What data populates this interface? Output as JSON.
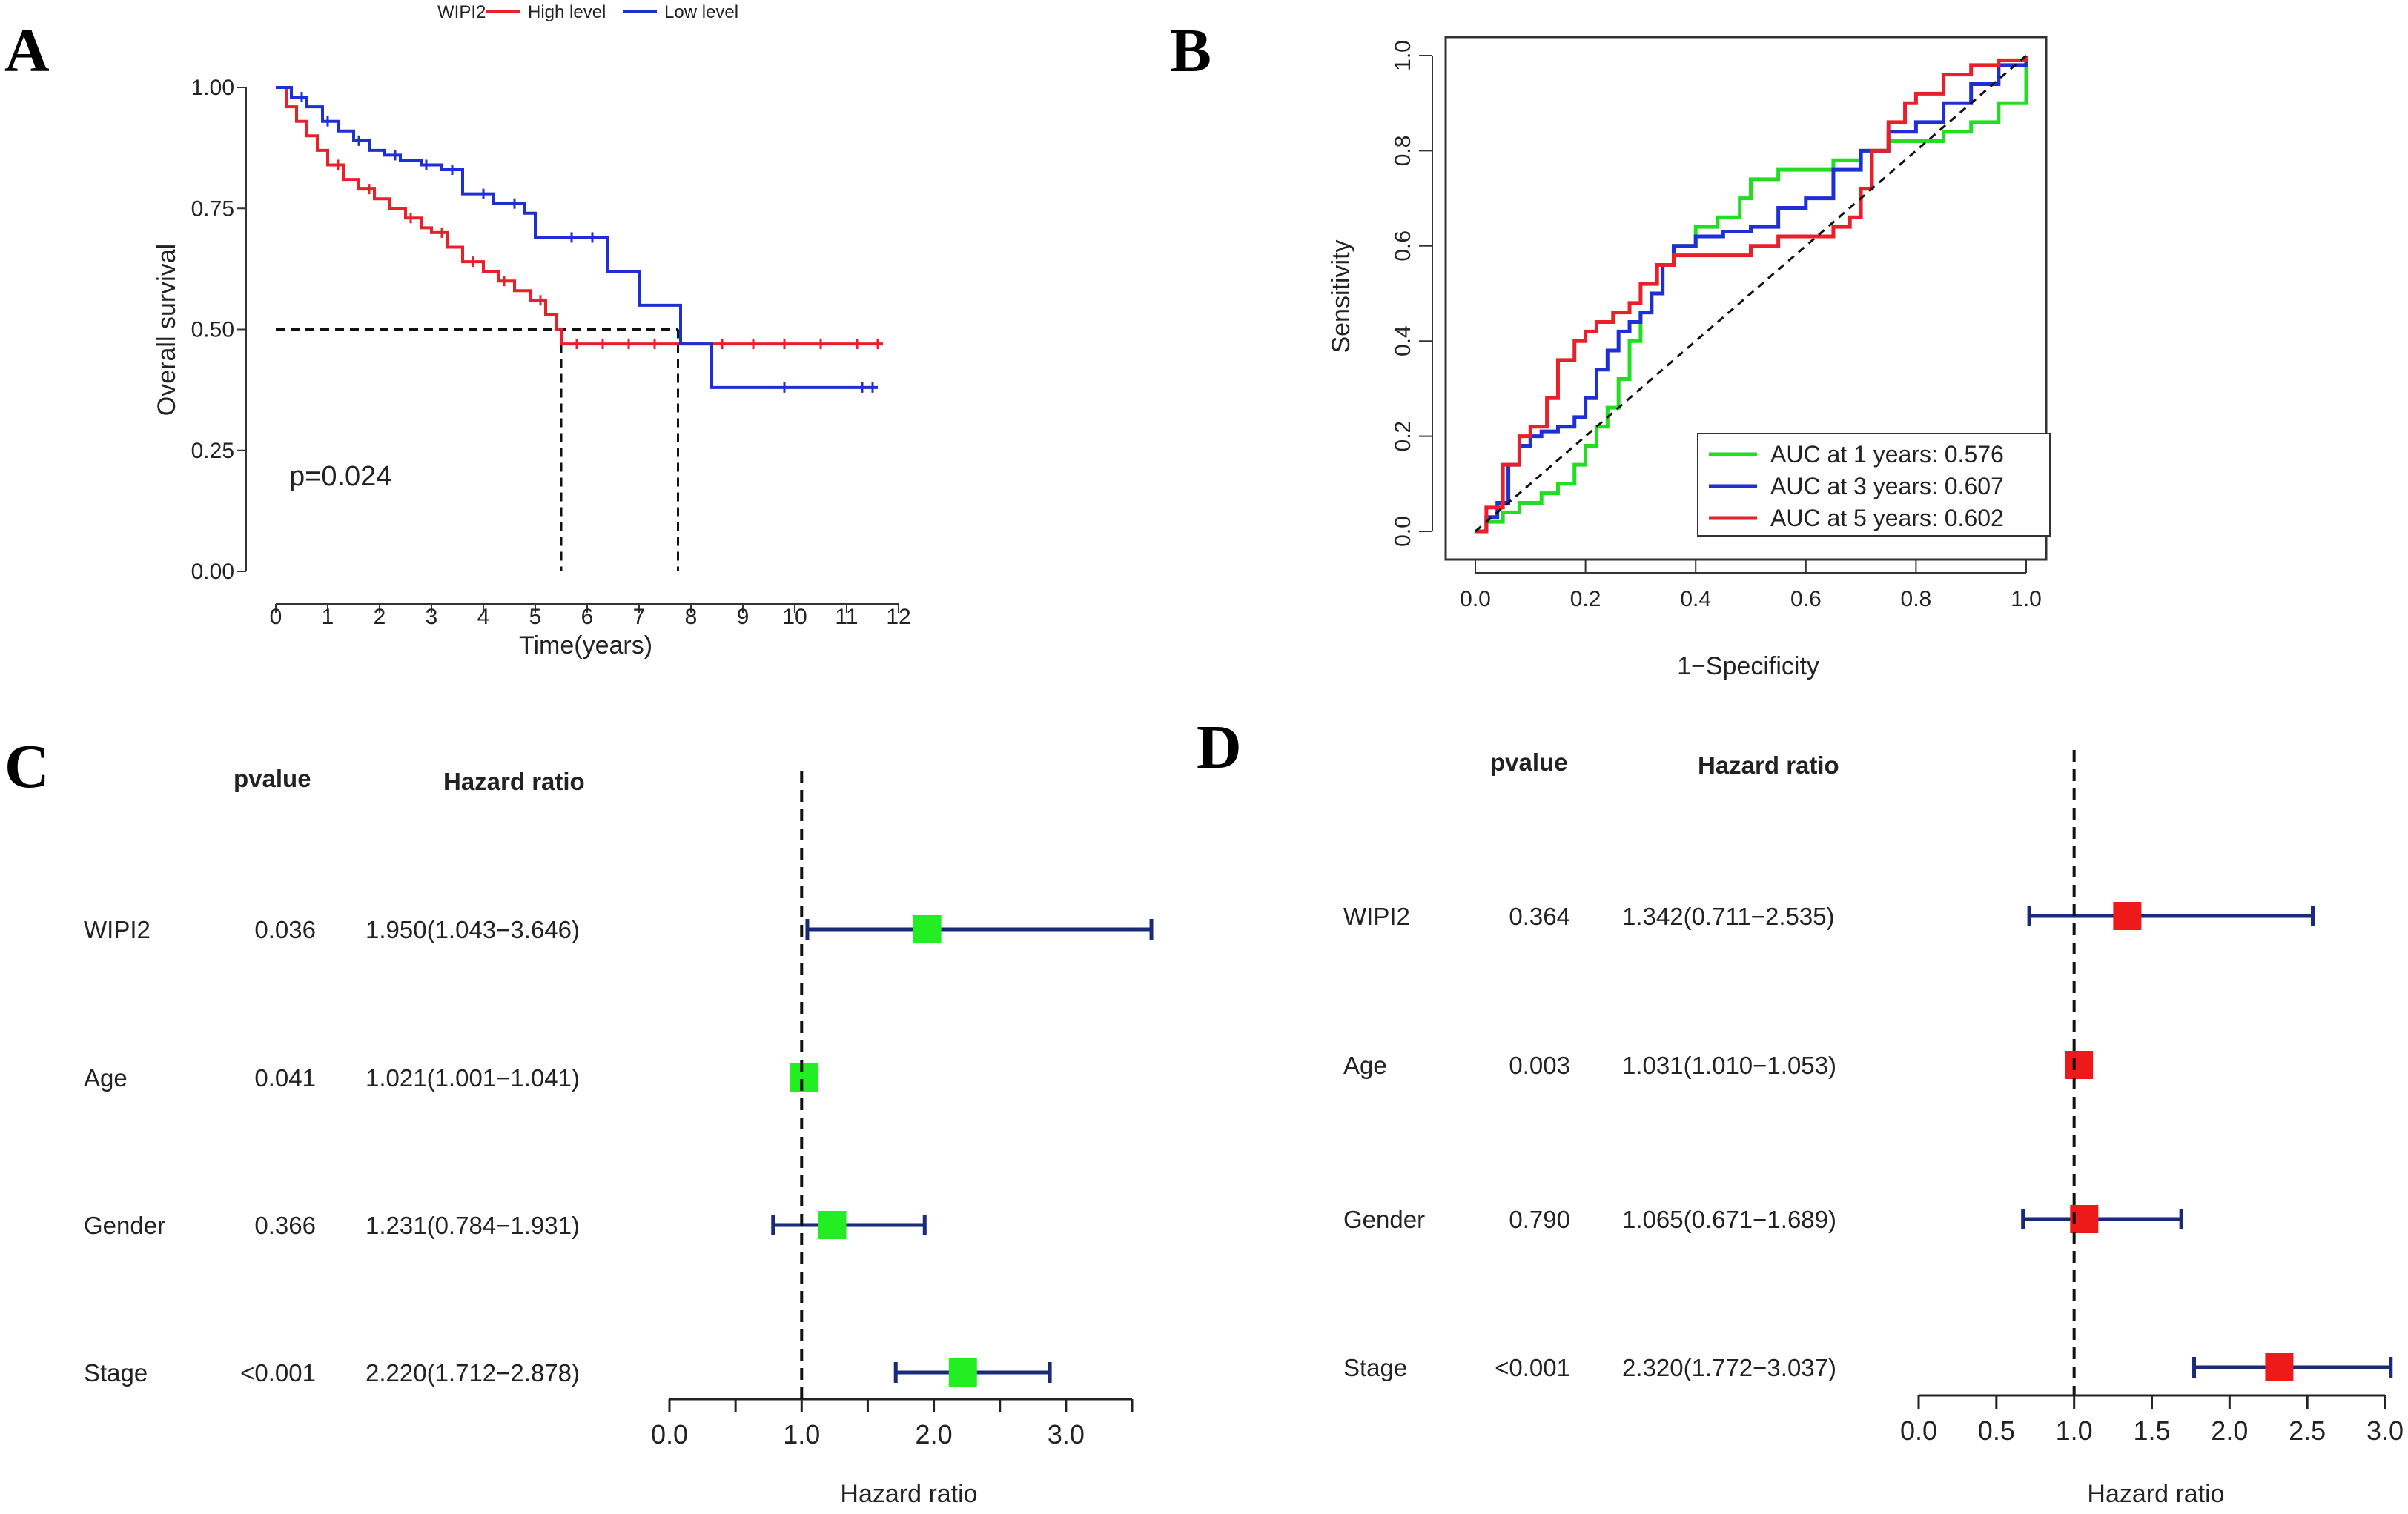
{
  "panels": {
    "a": "A",
    "b": "B",
    "c": "C",
    "d": "D"
  },
  "colors": {
    "high": "#e8202a",
    "low": "#1f2fd6",
    "auc1": "#22dd22",
    "auc3": "#1f2fd6",
    "auc5": "#e8202a",
    "fp_c_box": "#22ee22",
    "fp_d_box": "#ee1a1a",
    "fp_line": "#1a2a7a"
  },
  "chart_data": [
    {
      "id": "km",
      "type": "line",
      "title": "",
      "legend_title": "WIPI2",
      "xlabel": "Time(years)",
      "ylabel": "Overall survival",
      "xlim": [
        0,
        12
      ],
      "ylim": [
        0,
        1
      ],
      "x_ticks": [
        "0",
        "1",
        "2",
        "3",
        "4",
        "5",
        "6",
        "7",
        "8",
        "9",
        "10",
        "11",
        "12"
      ],
      "y_ticks": [
        "0.00",
        "0.25",
        "0.50",
        "0.75",
        "1.00"
      ],
      "annotation": "p=0.024",
      "median_reference": {
        "y": 0.5,
        "high_median_x": 5.5,
        "low_median_x": 7.75
      },
      "series": [
        {
          "name": "High level",
          "color_key": "high",
          "x": [
            0,
            0.2,
            0.4,
            0.6,
            0.8,
            1.0,
            1.3,
            1.6,
            1.9,
            2.2,
            2.5,
            2.8,
            3.0,
            3.3,
            3.6,
            4.0,
            4.3,
            4.6,
            4.9,
            5.2,
            5.4,
            5.5,
            6.0,
            7.0,
            7.8,
            8.0,
            9.0,
            10.0,
            11.0,
            11.7
          ],
          "y": [
            1.0,
            0.96,
            0.93,
            0.9,
            0.87,
            0.84,
            0.81,
            0.79,
            0.77,
            0.75,
            0.73,
            0.71,
            0.7,
            0.67,
            0.64,
            0.62,
            0.6,
            0.58,
            0.56,
            0.53,
            0.5,
            0.47,
            0.47,
            0.47,
            0.47,
            0.47,
            0.47,
            0.47,
            0.47,
            0.47
          ],
          "censor_x": [
            1.2,
            1.8,
            2.6,
            3.2,
            3.8,
            4.4,
            5.1,
            5.8,
            6.3,
            6.8,
            7.3,
            8.6,
            9.2,
            9.8,
            10.5,
            11.2,
            11.6
          ]
        },
        {
          "name": "Low level",
          "color_key": "low",
          "x": [
            0,
            0.3,
            0.6,
            0.9,
            1.2,
            1.5,
            1.8,
            2.1,
            2.4,
            2.8,
            3.2,
            3.6,
            4.2,
            4.8,
            5.0,
            5.5,
            5.8,
            6.4,
            6.8,
            7.0,
            7.7,
            7.8,
            8.3,
            8.4,
            9.0,
            10.0,
            11.0,
            11.6
          ],
          "y": [
            1.0,
            0.98,
            0.96,
            0.93,
            0.91,
            0.89,
            0.87,
            0.86,
            0.85,
            0.84,
            0.83,
            0.78,
            0.76,
            0.74,
            0.69,
            0.69,
            0.69,
            0.62,
            0.62,
            0.55,
            0.55,
            0.47,
            0.47,
            0.38,
            0.38,
            0.38,
            0.38,
            0.38
          ],
          "censor_x": [
            0.5,
            1.0,
            1.6,
            2.3,
            2.9,
            3.4,
            4.0,
            4.6,
            5.7,
            6.1,
            9.8,
            11.3,
            11.5
          ]
        }
      ]
    },
    {
      "id": "roc",
      "type": "line",
      "title": "",
      "xlabel": "1−Specificity",
      "ylabel": "Sensitivity",
      "xlim": [
        0,
        1
      ],
      "ylim": [
        0,
        1
      ],
      "x_ticks": [
        "0.0",
        "0.2",
        "0.4",
        "0.6",
        "0.8",
        "1.0"
      ],
      "y_ticks": [
        "0.0",
        "0.2",
        "0.4",
        "0.6",
        "0.8",
        "1.0"
      ],
      "series": [
        {
          "name": "AUC at 1 years: 0.576",
          "color_key": "auc1",
          "x": [
            0,
            0.02,
            0.05,
            0.08,
            0.12,
            0.15,
            0.18,
            0.2,
            0.22,
            0.24,
            0.26,
            0.28,
            0.3,
            0.32,
            0.34,
            0.36,
            0.4,
            0.44,
            0.48,
            0.5,
            0.55,
            0.6,
            0.65,
            0.7,
            0.75,
            0.8,
            0.85,
            0.9,
            0.95,
            1.0
          ],
          "y": [
            0,
            0.02,
            0.04,
            0.06,
            0.08,
            0.1,
            0.14,
            0.18,
            0.22,
            0.26,
            0.32,
            0.4,
            0.46,
            0.5,
            0.56,
            0.6,
            0.64,
            0.66,
            0.7,
            0.74,
            0.76,
            0.76,
            0.78,
            0.8,
            0.82,
            0.82,
            0.84,
            0.86,
            0.9,
            1.0
          ]
        },
        {
          "name": "AUC at 3 years: 0.607",
          "color_key": "auc3",
          "x": [
            0,
            0.02,
            0.04,
            0.06,
            0.08,
            0.1,
            0.12,
            0.15,
            0.18,
            0.2,
            0.22,
            0.24,
            0.26,
            0.28,
            0.3,
            0.32,
            0.34,
            0.36,
            0.4,
            0.45,
            0.5,
            0.55,
            0.6,
            0.65,
            0.7,
            0.75,
            0.8,
            0.85,
            0.9,
            0.95,
            1.0
          ],
          "y": [
            0,
            0.03,
            0.06,
            0.14,
            0.18,
            0.2,
            0.21,
            0.22,
            0.24,
            0.28,
            0.34,
            0.38,
            0.42,
            0.44,
            0.46,
            0.5,
            0.56,
            0.6,
            0.62,
            0.63,
            0.64,
            0.68,
            0.7,
            0.76,
            0.8,
            0.84,
            0.86,
            0.9,
            0.94,
            0.98,
            1.0
          ]
        },
        {
          "name": "AUC at 5 years: 0.602",
          "color_key": "auc5",
          "x": [
            0,
            0.02,
            0.05,
            0.08,
            0.1,
            0.13,
            0.15,
            0.18,
            0.2,
            0.22,
            0.25,
            0.28,
            0.3,
            0.33,
            0.36,
            0.4,
            0.45,
            0.5,
            0.55,
            0.6,
            0.65,
            0.68,
            0.7,
            0.72,
            0.75,
            0.78,
            0.8,
            0.85,
            0.9,
            0.95,
            1.0
          ],
          "y": [
            0,
            0.05,
            0.14,
            0.2,
            0.22,
            0.28,
            0.36,
            0.4,
            0.42,
            0.44,
            0.46,
            0.48,
            0.52,
            0.56,
            0.58,
            0.58,
            0.58,
            0.6,
            0.62,
            0.62,
            0.64,
            0.66,
            0.72,
            0.8,
            0.86,
            0.9,
            0.92,
            0.96,
            0.98,
            0.99,
            1.0
          ]
        },
        {
          "name": "reference",
          "color_key": "ref",
          "x": [
            0,
            1
          ],
          "y": [
            0,
            1
          ]
        }
      ]
    },
    {
      "id": "forest_c",
      "type": "scatter",
      "title": "",
      "xlabel": "Hazard ratio",
      "xlim": [
        0,
        3.5
      ],
      "x_ticks": [
        "0.0",
        "1.0",
        "2.0",
        "3.0"
      ],
      "x_tick_values": [
        0,
        1,
        2,
        3
      ],
      "minor_ticks": [
        0.5,
        1.5,
        2.5,
        3.5
      ],
      "ref_line": 1.0,
      "col_headers": {
        "pvalue": "pvalue",
        "hr": "Hazard ratio"
      },
      "rows": [
        {
          "label": "WIPI2",
          "pvalue": "0.036",
          "hr_text": "1.950(1.043−3.646)",
          "hr": 1.95,
          "lo": 1.043,
          "hi": 3.646
        },
        {
          "label": "Age",
          "pvalue": "0.041",
          "hr_text": "1.021(1.001−1.041)",
          "hr": 1.021,
          "lo": 1.001,
          "hi": 1.041
        },
        {
          "label": "Gender",
          "pvalue": "0.366",
          "hr_text": "1.231(0.784−1.931)",
          "hr": 1.231,
          "lo": 0.784,
          "hi": 1.931
        },
        {
          "label": "Stage",
          "pvalue": "<0.001",
          "hr_text": "2.220(1.712−2.878)",
          "hr": 2.22,
          "lo": 1.712,
          "hi": 2.878
        }
      ]
    },
    {
      "id": "forest_d",
      "type": "scatter",
      "title": "",
      "xlabel": "Hazard ratio",
      "xlim": [
        0,
        3.0
      ],
      "x_ticks": [
        "0.0",
        "0.5",
        "1.0",
        "1.5",
        "2.0",
        "2.5",
        "3.0"
      ],
      "x_tick_values": [
        0,
        0.5,
        1,
        1.5,
        2,
        2.5,
        3
      ],
      "minor_ticks": [],
      "ref_line": 1.0,
      "col_headers": {
        "pvalue": "pvalue",
        "hr": "Hazard ratio"
      },
      "rows": [
        {
          "label": "WIPI2",
          "pvalue": "0.364",
          "hr_text": "1.342(0.711−2.535)",
          "hr": 1.342,
          "lo": 0.711,
          "hi": 2.535
        },
        {
          "label": "Age",
          "pvalue": "0.003",
          "hr_text": "1.031(1.010−1.053)",
          "hr": 1.031,
          "lo": 1.01,
          "hi": 1.053
        },
        {
          "label": "Gender",
          "pvalue": "0.790",
          "hr_text": "1.065(0.671−1.689)",
          "hr": 1.065,
          "lo": 0.671,
          "hi": 1.689
        },
        {
          "label": "Stage",
          "pvalue": "<0.001",
          "hr_text": "2.320(1.772−3.037)",
          "hr": 2.32,
          "lo": 1.772,
          "hi": 3.037
        }
      ]
    }
  ]
}
